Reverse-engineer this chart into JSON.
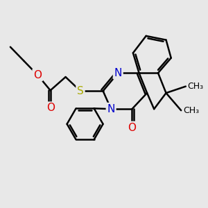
{
  "bg_color": "#e8e8e8",
  "bond_color": "#000000",
  "bond_width": 1.8,
  "font_size": 10,
  "fig_size": [
    3.0,
    3.0
  ],
  "dpi": 100,
  "colors": {
    "N": "#0000cc",
    "O": "#dd0000",
    "S": "#aaaa00",
    "C": "#000000"
  }
}
